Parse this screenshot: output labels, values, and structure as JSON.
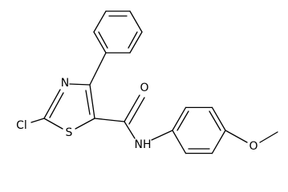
{
  "atoms": [
    {
      "label": "Cl"
    },
    {
      "label": "N"
    },
    {
      "label": "S"
    },
    {
      "label": "O"
    },
    {
      "label": "NH"
    },
    {
      "label": "O"
    }
  ]
}
